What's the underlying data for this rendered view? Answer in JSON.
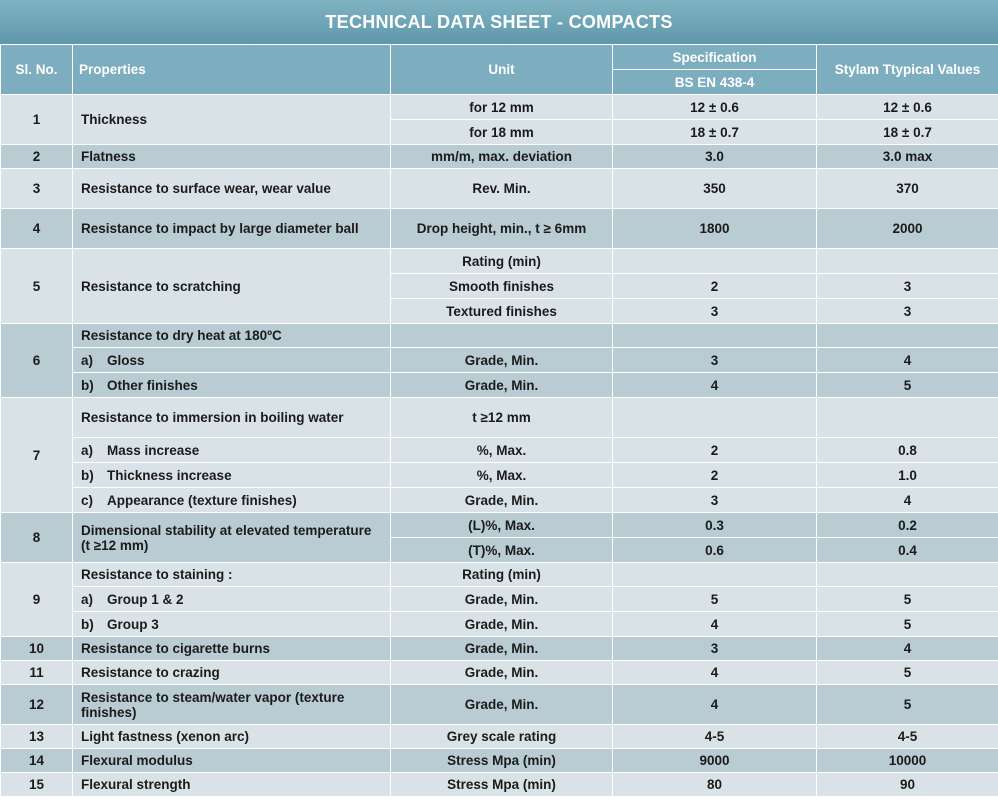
{
  "title": "TECHNICAL DATA SHEET - COMPACTS",
  "headers": {
    "sl_no": "Sl. No.",
    "properties": "Properties",
    "unit": "Unit",
    "specification": "Specification",
    "spec_sub": "BS EN 438-4",
    "stylam": "Stylam Ttypical Values"
  },
  "rows": {
    "r1": {
      "sl": "1",
      "prop": "Thickness",
      "a": {
        "unit": "for 12 mm",
        "spec": "12 ± 0.6",
        "val": "12 ± 0.6"
      },
      "b": {
        "unit": "for 18 mm",
        "spec": "18 ± 0.7",
        "val": "18 ± 0.7"
      }
    },
    "r2": {
      "sl": "2",
      "prop": "Flatness",
      "unit": "mm/m, max. deviation",
      "spec": "3.0",
      "val": "3.0 max"
    },
    "r3": {
      "sl": "3",
      "prop": "Resistance to surface wear, wear value",
      "unit": "Rev. Min.",
      "spec": "350",
      "val": "370"
    },
    "r4": {
      "sl": "4",
      "prop": "Resistance to impact by large diameter ball",
      "unit": "Drop height, min., t ≥ 6mm",
      "spec": "1800",
      "val": "2000"
    },
    "r5": {
      "sl": "5",
      "prop": "Resistance to scratching",
      "a": {
        "unit": "Rating (min)"
      },
      "b": {
        "unit": "Smooth finishes",
        "spec": "2",
        "val": "3"
      },
      "c": {
        "unit": "Textured finishes",
        "spec": "3",
        "val": "3"
      }
    },
    "r6": {
      "sl": "6",
      "prop": "Resistance to dry heat at 180ºC",
      "a": {
        "lbl": "a)",
        "prop": "Gloss",
        "unit": "Grade, Min.",
        "spec": "3",
        "val": "4"
      },
      "b": {
        "lbl": "b)",
        "prop": "Other finishes",
        "unit": "Grade, Min.",
        "spec": "4",
        "val": "5"
      }
    },
    "r7": {
      "sl": "7",
      "prop": "Resistance  to immersion in boiling water",
      "unit": "t ≥12 mm",
      "a": {
        "lbl": "a)",
        "prop": "Mass increase",
        "unit": "%, Max.",
        "spec": "2",
        "val": "0.8"
      },
      "b": {
        "lbl": "b)",
        "prop": "Thickness increase",
        "unit": "%, Max.",
        "spec": "2",
        "val": "1.0"
      },
      "c": {
        "lbl": "c)",
        "prop": "Appearance (texture finishes)",
        "unit": "Grade, Min.",
        "spec": "3",
        "val": "4"
      }
    },
    "r8": {
      "sl": "8",
      "prop": "Dimensional stability at elevated temperature (t ≥12 mm)",
      "a": {
        "unit": "(L)%, Max.",
        "spec": "0.3",
        "val": "0.2"
      },
      "b": {
        "unit": "(T)%, Max.",
        "spec": "0.6",
        "val": "0.4"
      }
    },
    "r9": {
      "sl": "9",
      "prop": "Resistance to staining :",
      "unit": "Rating (min)",
      "a": {
        "lbl": "a)",
        "prop": "Group 1 & 2",
        "unit": "Grade, Min.",
        "spec": "5",
        "val": "5"
      },
      "b": {
        "lbl": "b)",
        "prop": "Group 3",
        "unit": "Grade, Min.",
        "spec": "4",
        "val": "5"
      }
    },
    "r10": {
      "sl": "10",
      "prop": "Resistance to cigarette burns",
      "unit": "Grade, Min.",
      "spec": "3",
      "val": "4"
    },
    "r11": {
      "sl": "11",
      "prop": "Resistance to crazing",
      "unit": "Grade, Min.",
      "spec": "4",
      "val": "5"
    },
    "r12": {
      "sl": "12",
      "prop": "Resistance to steam/water vapor (texture finishes)",
      "unit": "Grade, Min.",
      "spec": "4",
      "val": "5"
    },
    "r13": {
      "sl": "13",
      "prop": "Light fastness (xenon arc)",
      "unit": "Grey scale rating",
      "spec": "4-5",
      "val": "4-5"
    },
    "r14": {
      "sl": "14",
      "prop": "Flexural modulus",
      "unit": "Stress Mpa (min)",
      "spec": "9000",
      "val": "10000"
    },
    "r15": {
      "sl": "15",
      "prop": "Flexural strength",
      "unit": "Stress Mpa (min)",
      "spec": "80",
      "val": "90"
    }
  },
  "colors": {
    "header_bg": "#7daebf",
    "row_light": "#d9e3e7",
    "row_dark": "#b9cbd3"
  }
}
